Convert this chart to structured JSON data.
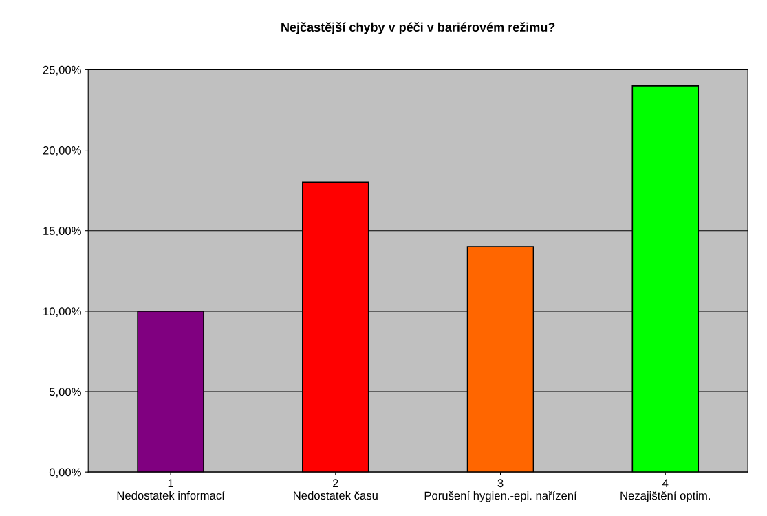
{
  "chart_data": {
    "type": "bar",
    "title": "Nejčastější chyby v péči v bariérovém režimu?",
    "categories": [
      "1\nNedostatek informací",
      "2\nNedostatek času",
      "3\nPorušení hygien.-epi. nařízení",
      "4\nNezajištění optim."
    ],
    "values": [
      10,
      18,
      14,
      24
    ],
    "colors": [
      "#800080",
      "#ff0000",
      "#ff6600",
      "#00ff00"
    ],
    "ylim": [
      0,
      25
    ],
    "yticks": [
      {
        "value": 0,
        "label": "0,00%"
      },
      {
        "value": 5,
        "label": "5,00%"
      },
      {
        "value": 10,
        "label": "10,00%"
      },
      {
        "value": 15,
        "label": "15,00%"
      },
      {
        "value": 20,
        "label": "20,00%"
      },
      {
        "value": 25,
        "label": "25,00%"
      }
    ],
    "grid": "y",
    "legend": false
  }
}
